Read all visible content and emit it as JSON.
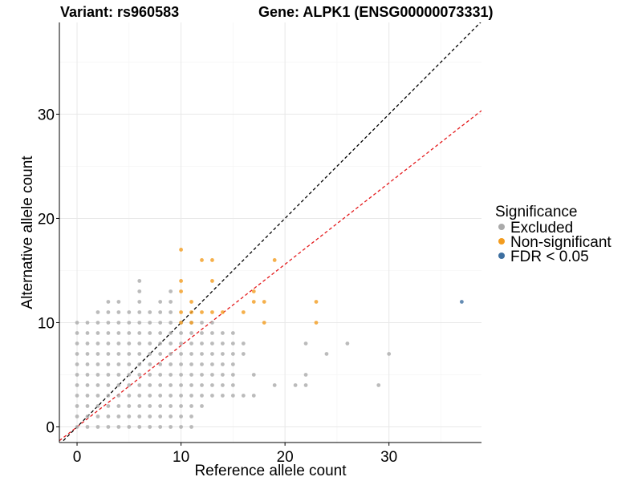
{
  "chart_data": {
    "type": "scatter",
    "title_left": "Variant: rs960583",
    "title_right": "Gene: ALPK1 (ENSG00000073331)",
    "xlabel": "Reference allele count",
    "ylabel": "Alternative allele count",
    "xlim": [
      -1.7,
      38.9
    ],
    "ylim": [
      -1.5,
      38.8
    ],
    "xticks": [
      "0",
      "10",
      "20",
      "30"
    ],
    "yticks": [
      "0",
      "10",
      "20",
      "30"
    ],
    "grid": true,
    "legend": {
      "title": "Significance",
      "placement": "right",
      "entries": [
        {
          "label": "Excluded",
          "color": "#aaaaaa"
        },
        {
          "label": "Non-significant",
          "color": "#f39c1f"
        },
        {
          "label": "FDR < 0.05",
          "color": "#3d6fa0"
        }
      ]
    },
    "reference_lines": [
      {
        "name": "y = x",
        "slope": 1,
        "intercept": 0,
        "color": "#000000",
        "style": "dashed"
      },
      {
        "name": "fit",
        "slope": 0.78,
        "intercept": 0,
        "color": "#e41a1c",
        "style": "dashed"
      }
    ],
    "series": [
      {
        "group": "Excluded",
        "color": "#aaaaaa",
        "points": [
          [
            0,
            0
          ],
          [
            0,
            1
          ],
          [
            0,
            2
          ],
          [
            0,
            3
          ],
          [
            0,
            4
          ],
          [
            0,
            5
          ],
          [
            0,
            6
          ],
          [
            0,
            7
          ],
          [
            0,
            8
          ],
          [
            0,
            9
          ],
          [
            0,
            10
          ],
          [
            1,
            0
          ],
          [
            1,
            1
          ],
          [
            1,
            2
          ],
          [
            1,
            3
          ],
          [
            1,
            4
          ],
          [
            1,
            5
          ],
          [
            1,
            6
          ],
          [
            1,
            7
          ],
          [
            1,
            8
          ],
          [
            1,
            9
          ],
          [
            1,
            10
          ],
          [
            2,
            0
          ],
          [
            2,
            1
          ],
          [
            2,
            2
          ],
          [
            2,
            3
          ],
          [
            2,
            4
          ],
          [
            2,
            5
          ],
          [
            2,
            6
          ],
          [
            2,
            7
          ],
          [
            2,
            8
          ],
          [
            2,
            9
          ],
          [
            2,
            10
          ],
          [
            2,
            11
          ],
          [
            3,
            0
          ],
          [
            3,
            1
          ],
          [
            3,
            2
          ],
          [
            3,
            3
          ],
          [
            3,
            4
          ],
          [
            3,
            5
          ],
          [
            3,
            6
          ],
          [
            3,
            7
          ],
          [
            3,
            8
          ],
          [
            3,
            9
          ],
          [
            3,
            10
          ],
          [
            3,
            11
          ],
          [
            3,
            12
          ],
          [
            4,
            0
          ],
          [
            4,
            1
          ],
          [
            4,
            2
          ],
          [
            4,
            3
          ],
          [
            4,
            4
          ],
          [
            4,
            5
          ],
          [
            4,
            6
          ],
          [
            4,
            7
          ],
          [
            4,
            8
          ],
          [
            4,
            9
          ],
          [
            4,
            10
          ],
          [
            4,
            11
          ],
          [
            4,
            12
          ],
          [
            5,
            0
          ],
          [
            5,
            1
          ],
          [
            5,
            2
          ],
          [
            5,
            3
          ],
          [
            5,
            4
          ],
          [
            5,
            5
          ],
          [
            5,
            6
          ],
          [
            5,
            7
          ],
          [
            5,
            8
          ],
          [
            5,
            9
          ],
          [
            5,
            10
          ],
          [
            5,
            11
          ],
          [
            6,
            0
          ],
          [
            6,
            1
          ],
          [
            6,
            2
          ],
          [
            6,
            3
          ],
          [
            6,
            4
          ],
          [
            6,
            5
          ],
          [
            6,
            6
          ],
          [
            6,
            7
          ],
          [
            6,
            8
          ],
          [
            6,
            9
          ],
          [
            6,
            10
          ],
          [
            6,
            11
          ],
          [
            6,
            12
          ],
          [
            6,
            13
          ],
          [
            6,
            14
          ],
          [
            7,
            0
          ],
          [
            7,
            1
          ],
          [
            7,
            2
          ],
          [
            7,
            3
          ],
          [
            7,
            4
          ],
          [
            7,
            5
          ],
          [
            7,
            6
          ],
          [
            7,
            7
          ],
          [
            7,
            8
          ],
          [
            7,
            9
          ],
          [
            7,
            10
          ],
          [
            7,
            11
          ],
          [
            8,
            0
          ],
          [
            8,
            1
          ],
          [
            8,
            2
          ],
          [
            8,
            3
          ],
          [
            8,
            4
          ],
          [
            8,
            5
          ],
          [
            8,
            6
          ],
          [
            8,
            7
          ],
          [
            8,
            8
          ],
          [
            8,
            9
          ],
          [
            8,
            10
          ],
          [
            8,
            11
          ],
          [
            8,
            12
          ],
          [
            9,
            0
          ],
          [
            9,
            1
          ],
          [
            9,
            2
          ],
          [
            9,
            3
          ],
          [
            9,
            4
          ],
          [
            9,
            5
          ],
          [
            9,
            6
          ],
          [
            9,
            7
          ],
          [
            9,
            8
          ],
          [
            9,
            9
          ],
          [
            9,
            10
          ],
          [
            9,
            11
          ],
          [
            9,
            12
          ],
          [
            9,
            13
          ],
          [
            10,
            0
          ],
          [
            10,
            1
          ],
          [
            10,
            2
          ],
          [
            10,
            3
          ],
          [
            10,
            4
          ],
          [
            10,
            5
          ],
          [
            10,
            6
          ],
          [
            10,
            7
          ],
          [
            10,
            8
          ],
          [
            10,
            9
          ],
          [
            10,
            10
          ],
          [
            11,
            0
          ],
          [
            11,
            1
          ],
          [
            11,
            2
          ],
          [
            11,
            3
          ],
          [
            11,
            4
          ],
          [
            11,
            5
          ],
          [
            11,
            6
          ],
          [
            11,
            7
          ],
          [
            11,
            8
          ],
          [
            11,
            9
          ],
          [
            11,
            10
          ],
          [
            12,
            2
          ],
          [
            12,
            3
          ],
          [
            12,
            4
          ],
          [
            12,
            5
          ],
          [
            12,
            6
          ],
          [
            12,
            7
          ],
          [
            12,
            8
          ],
          [
            12,
            9
          ],
          [
            12,
            10
          ],
          [
            13,
            3
          ],
          [
            13,
            4
          ],
          [
            13,
            5
          ],
          [
            13,
            6
          ],
          [
            13,
            7
          ],
          [
            13,
            8
          ],
          [
            13,
            9
          ],
          [
            13,
            10
          ],
          [
            14,
            3
          ],
          [
            14,
            4
          ],
          [
            14,
            5
          ],
          [
            14,
            6
          ],
          [
            14,
            7
          ],
          [
            14,
            8
          ],
          [
            14,
            9
          ],
          [
            15,
            3
          ],
          [
            15,
            4
          ],
          [
            15,
            5
          ],
          [
            15,
            6
          ],
          [
            15,
            7
          ],
          [
            15,
            8
          ],
          [
            15,
            9
          ],
          [
            16,
            3
          ],
          [
            16,
            7
          ],
          [
            16,
            8
          ],
          [
            17,
            3
          ],
          [
            17,
            5
          ],
          [
            19,
            4
          ],
          [
            21,
            4
          ],
          [
            22,
            4
          ],
          [
            22,
            5
          ],
          [
            22,
            8
          ],
          [
            24,
            7
          ],
          [
            26,
            8
          ],
          [
            29,
            4
          ],
          [
            30,
            7
          ]
        ]
      },
      {
        "group": "Non-significant",
        "color": "#f39c1f",
        "points": [
          [
            10,
            17
          ],
          [
            10,
            14
          ],
          [
            10,
            13
          ],
          [
            10,
            11
          ],
          [
            10,
            10
          ],
          [
            11,
            12
          ],
          [
            11,
            11
          ],
          [
            11,
            10
          ],
          [
            12,
            16
          ],
          [
            12,
            11
          ],
          [
            13,
            16
          ],
          [
            13,
            14
          ],
          [
            13,
            11
          ],
          [
            14,
            11
          ],
          [
            16,
            11
          ],
          [
            17,
            13
          ],
          [
            17,
            12
          ],
          [
            18,
            12
          ],
          [
            18,
            10
          ],
          [
            19,
            16
          ],
          [
            23,
            12
          ],
          [
            23,
            10
          ]
        ]
      },
      {
        "group": "FDR < 0.05",
        "color": "#3d6fa0",
        "points": [
          [
            37,
            12
          ]
        ]
      }
    ]
  }
}
